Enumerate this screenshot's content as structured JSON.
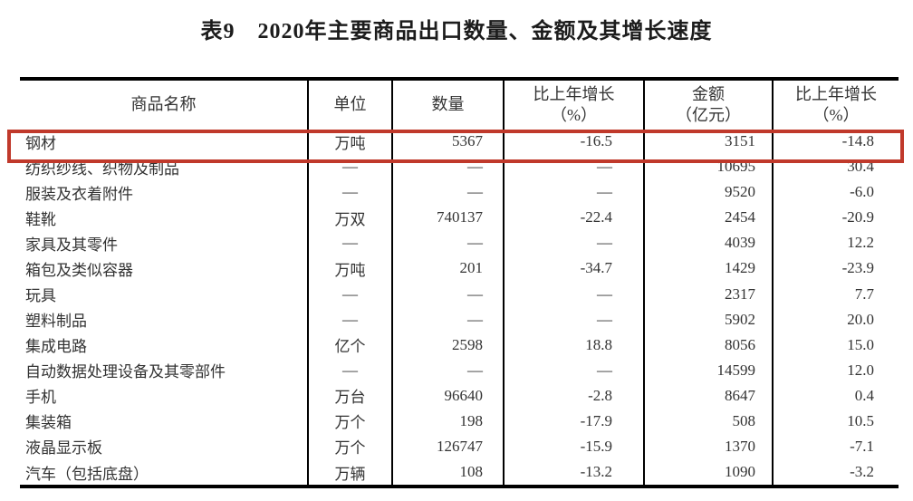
{
  "title": "表9　2020年主要商品出口数量、金额及其增长速度",
  "table": {
    "columns": [
      {
        "label": "商品名称"
      },
      {
        "label": "单位"
      },
      {
        "label": "数量"
      },
      {
        "label": "比上年增长",
        "label2": "（%）"
      },
      {
        "label": "金额",
        "label2": "（亿元）"
      },
      {
        "label": "比上年增长",
        "label2": "（%）"
      }
    ],
    "rows": [
      [
        "钢材",
        "万吨",
        "5367",
        "-16.5",
        "3151",
        "-14.8"
      ],
      [
        "纺织纱线、织物及制品",
        "—",
        "—",
        "—",
        "10695",
        "30.4"
      ],
      [
        "服装及衣着附件",
        "—",
        "—",
        "—",
        "9520",
        "-6.0"
      ],
      [
        "鞋靴",
        "万双",
        "740137",
        "-22.4",
        "2454",
        "-20.9"
      ],
      [
        "家具及其零件",
        "—",
        "—",
        "—",
        "4039",
        "12.2"
      ],
      [
        "箱包及类似容器",
        "万吨",
        "201",
        "-34.7",
        "1429",
        "-23.9"
      ],
      [
        "玩具",
        "—",
        "—",
        "—",
        "2317",
        "7.7"
      ],
      [
        "塑料制品",
        "—",
        "—",
        "—",
        "5902",
        "20.0"
      ],
      [
        "集成电路",
        "亿个",
        "2598",
        "18.8",
        "8056",
        "15.0"
      ],
      [
        "自动数据处理设备及其零部件",
        "—",
        "—",
        "—",
        "14599",
        "12.0"
      ],
      [
        "手机",
        "万台",
        "96640",
        "-2.8",
        "8647",
        "0.4"
      ],
      [
        "集装箱",
        "万个",
        "198",
        "-17.9",
        "508",
        "10.5"
      ],
      [
        "液晶显示板",
        "万个",
        "126747",
        "-15.9",
        "1370",
        "-7.1"
      ],
      [
        "汽车（包括底盘）",
        "万辆",
        "108",
        "-13.2",
        "1090",
        "-3.2"
      ]
    ],
    "highlight": {
      "row_label": "钢材",
      "color": "#c0392b"
    }
  }
}
